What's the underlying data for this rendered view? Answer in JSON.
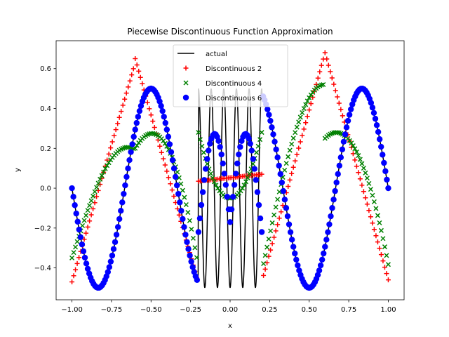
{
  "chart_data": {
    "type": "scatter",
    "title": "Piecewise Discontinuous Function Approximation",
    "xlabel": "x",
    "ylabel": "y",
    "xlim": [
      -1.1,
      1.1
    ],
    "ylim": [
      -0.56,
      0.74
    ],
    "xticks": [
      -1.0,
      -0.75,
      -0.5,
      -0.25,
      0.0,
      0.25,
      0.5,
      0.75,
      1.0
    ],
    "xtick_labels": [
      "−1.00",
      "−0.75",
      "−0.50",
      "−0.25",
      "0.00",
      "0.25",
      "0.50",
      "0.75",
      "1.00"
    ],
    "yticks": [
      -0.4,
      -0.2,
      0.0,
      0.2,
      0.4,
      0.6
    ],
    "ytick_labels": [
      "−0.4",
      "−0.2",
      "0.0",
      "0.2",
      "0.4",
      "0.6"
    ],
    "grid": false,
    "legend_position": "top-center",
    "series": [
      {
        "name": "actual",
        "marker": "line",
        "color": "#000000"
      },
      {
        "name": "Discontinuous 2",
        "marker": "plus",
        "color": "#ff0000"
      },
      {
        "name": "Discontinuous 4",
        "marker": "x",
        "color": "#008000"
      },
      {
        "name": "Discontinuous 6",
        "marker": "circle",
        "color": "#0000ff"
      }
    ]
  }
}
